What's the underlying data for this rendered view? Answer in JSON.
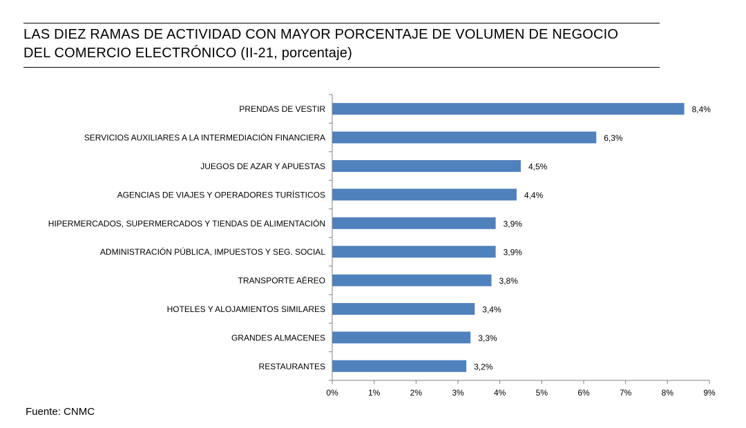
{
  "title_line1": "LAS DIEZ RAMAS DE ACTIVIDAD CON MAYOR PORCENTAJE DE VOLUMEN DE NEGOCIO",
  "title_line2": "DEL COMERCIO ELECTRÓNICO (II-21, porcentaje)",
  "source": "Fuente: CNMC",
  "chart_data": {
    "type": "bar",
    "orientation": "horizontal",
    "categories": [
      "PRENDAS DE VESTIR",
      "SERVICIOS AUXILIARES A LA INTERMEDIACIÓN FINANCIERA",
      "JUEGOS DE AZAR Y APUESTAS",
      "AGENCIAS DE VIAJES Y OPERADORES TURÍSTICOS",
      "HIPERMERCADOS, SUPERMERCADOS Y TIENDAS DE ALIMENTACIÓN",
      "ADMINISTRACIÓN PÚBLICA, IMPUESTOS Y SEG. SOCIAL",
      "TRANSPORTE AÉREO",
      "HOTELES  Y ALOJAMIENTOS SIMILARES",
      "GRANDES ALMACENES",
      "RESTAURANTES"
    ],
    "values": [
      8.4,
      6.3,
      4.5,
      4.4,
      3.9,
      3.9,
      3.8,
      3.4,
      3.3,
      3.2
    ],
    "value_labels": [
      "8,4%",
      "6,3%",
      "4,5%",
      "4,4%",
      "3,9%",
      "3,9%",
      "3,8%",
      "3,4%",
      "3,3%",
      "3,2%"
    ],
    "xlim": [
      0,
      9
    ],
    "x_ticks": [
      0,
      1,
      2,
      3,
      4,
      5,
      6,
      7,
      8,
      9
    ],
    "x_tick_labels": [
      "0%",
      "1%",
      "2%",
      "3%",
      "4%",
      "5%",
      "6%",
      "7%",
      "8%",
      "9%"
    ],
    "grid": false,
    "legend": "none",
    "bar_color": "#4F81BD"
  }
}
